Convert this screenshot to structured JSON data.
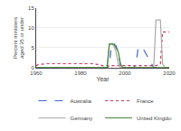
{
  "chart_data": {
    "type": "line",
    "xlabel": "Year",
    "ylabel": "Percent ministers aged 35 or under",
    "xlim": [
      1960,
      2020
    ],
    "ylim": [
      0,
      15
    ],
    "xticks": [
      1960,
      1980,
      2000,
      2020
    ],
    "yticks": [
      0,
      5,
      10,
      15
    ],
    "grid": true,
    "legend": "bottom",
    "series": [
      {
        "name": "Australia",
        "color": "#4466cc",
        "line_style": "dashed",
        "x": [
          1960,
          1992,
          1993,
          1994,
          1995,
          1996,
          1997,
          1998,
          1999,
          2004,
          2005,
          2006,
          2007,
          2008,
          2009,
          2010,
          2011,
          2012,
          2013,
          2020
        ],
        "values": [
          0,
          0,
          0.5,
          6,
          6,
          5.5,
          4,
          0.5,
          0,
          0,
          1,
          5,
          5,
          5,
          4,
          3,
          2,
          1,
          0,
          0
        ]
      },
      {
        "name": "France",
        "color": "#cc3355",
        "line_style": "dotted",
        "x": [
          1960,
          1961,
          1965,
          1970,
          1975,
          1980,
          1985,
          1988,
          1990,
          1995,
          2000,
          2005,
          2010,
          2014,
          2016,
          2017,
          2018,
          2019,
          2020
        ],
        "values": [
          0.5,
          0.8,
          1,
          1,
          1,
          1,
          1,
          0.8,
          0.5,
          0.5,
          0.5,
          0.5,
          0.5,
          0.5,
          1,
          9,
          9,
          9,
          9
        ]
      },
      {
        "name": "Germany",
        "color": "#aaaaaa",
        "line_style": "solid",
        "x": [
          1960,
          1992,
          1993,
          1994,
          1995,
          1996,
          1997,
          1998,
          2013,
          2014,
          2015,
          2016,
          2017,
          2018,
          2020
        ],
        "values": [
          0,
          0,
          6,
          6,
          5.5,
          4,
          1,
          0,
          0,
          12,
          12,
          12,
          1,
          0,
          0
        ]
      },
      {
        "name": "United Kingdom",
        "color": "#448833",
        "line_style": "solid",
        "x": [
          1960,
          1992,
          1993,
          1994,
          1995,
          1996,
          1997,
          1998,
          1999,
          2020
        ],
        "values": [
          0,
          0,
          6,
          6,
          6,
          5,
          4,
          1,
          0,
          0
        ]
      }
    ]
  }
}
